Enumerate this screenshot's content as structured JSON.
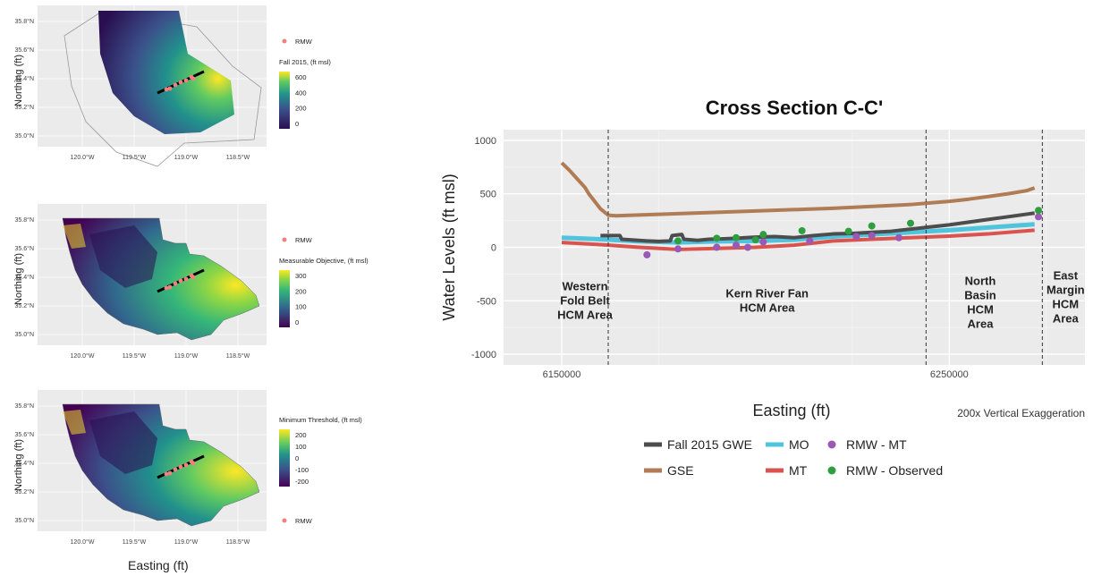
{
  "maps": [
    {
      "legend_title": "Fall 2015, (ft msl)",
      "rmw_label": "RMW",
      "colorbar_ticks": [
        "600",
        "400",
        "200",
        "0"
      ],
      "y_ticks": [
        "35.8°N",
        "35.6°N",
        "35.4°N",
        "35.2°N",
        "35.0°N"
      ],
      "x_ticks": [
        "120.0°W",
        "119.5°W",
        "119.0°W",
        "118.5°W"
      ],
      "ylabel": "Northing (ft)"
    },
    {
      "legend_title": "Measurable Objective, (ft msl)",
      "rmw_label": "RMW",
      "colorbar_ticks": [
        "300",
        "200",
        "100",
        "0"
      ],
      "y_ticks": [
        "35.8°N",
        "35.6°N",
        "35.4°N",
        "35.2°N",
        "35.0°N"
      ],
      "x_ticks": [
        "120.0°W",
        "119.5°W",
        "119.0°W",
        "118.5°W"
      ],
      "ylabel": "Northing (ft)"
    },
    {
      "legend_title": "Minimum Threshold, (ft msl)",
      "rmw_label": "RMW",
      "colorbar_ticks": [
        "200",
        "100",
        "0",
        "-100",
        "-200"
      ],
      "y_ticks": [
        "35.8°N",
        "35.6°N",
        "35.4°N",
        "35.2°N",
        "35.0°N"
      ],
      "x_ticks": [
        "120.0°W",
        "119.5°W",
        "119.0°W",
        "118.5°W"
      ],
      "ylabel": "Northing (ft)"
    }
  ],
  "maps_xlabel": "Easting (ft)",
  "chart_data": {
    "type": "line",
    "title": "Cross Section  C-C'",
    "xlabel": "Easting (ft)",
    "ylabel": "Water Levels (ft msl)",
    "xlim": [
      6135000,
      6285000
    ],
    "ylim": [
      -1100,
      1100
    ],
    "x_ticks": [
      6150000,
      6250000
    ],
    "x_tick_labels": [
      "6150000",
      "6250000"
    ],
    "y_ticks": [
      1000,
      500,
      0,
      -500,
      -1000
    ],
    "y_tick_labels": [
      "1000",
      "500",
      "0",
      "-500",
      "-1000"
    ],
    "grid": true,
    "note": "200x Vertical Exaggeration",
    "area_boundaries": [
      6162000,
      6244000,
      6274000
    ],
    "area_labels": [
      {
        "lines": [
          "Western",
          "Fold Belt",
          "HCM Area"
        ],
        "x": 6156000,
        "y": -400
      },
      {
        "lines": [
          "Kern River Fan",
          "HCM Area"
        ],
        "x": 6203000,
        "y": -470
      },
      {
        "lines": [
          "North",
          "Basin",
          "HCM",
          "Area"
        ],
        "x": 6258000,
        "y": -350
      },
      {
        "lines": [
          "East",
          "Margin",
          "HCM",
          "Area"
        ],
        "x": 6280000,
        "y": -300
      }
    ],
    "series": [
      {
        "name": "GSE",
        "color": "#b07c55",
        "width": 4,
        "x": [
          6150000,
          6152000,
          6154000,
          6156000,
          6157000,
          6158500,
          6160000,
          6162000,
          6164000,
          6180000,
          6200000,
          6220000,
          6240000,
          6245000,
          6250000,
          6255000,
          6260000,
          6265000,
          6270000,
          6272000
        ],
        "y": [
          790,
          720,
          640,
          560,
          500,
          430,
          360,
          300,
          295,
          315,
          340,
          365,
          400,
          415,
          430,
          450,
          475,
          500,
          530,
          555
        ]
      },
      {
        "name": "MO",
        "color": "#4fc4dc",
        "width": 5,
        "x": [
          6150000,
          6160000,
          6170000,
          6180000,
          6190000,
          6200000,
          6210000,
          6220000,
          6230000,
          6240000,
          6250000,
          6260000,
          6272000
        ],
        "y": [
          90,
          75,
          55,
          45,
          55,
          60,
          70,
          100,
          120,
          140,
          160,
          185,
          215
        ]
      },
      {
        "name": "MT",
        "color": "#d9534f",
        "width": 4,
        "x": [
          6150000,
          6160000,
          6170000,
          6180000,
          6190000,
          6200000,
          6210000,
          6220000,
          6230000,
          6240000,
          6250000,
          6260000,
          6272000
        ],
        "y": [
          45,
          25,
          0,
          -20,
          -10,
          0,
          20,
          60,
          75,
          90,
          105,
          125,
          160
        ]
      },
      {
        "name": "Fall 2015 GWE",
        "color": "#4d4d4d",
        "width": 4,
        "x": [
          6160000,
          6165000,
          6165500,
          6172000,
          6175000,
          6178000,
          6178500,
          6181000,
          6181500,
          6185000,
          6188000,
          6192000,
          6195000,
          6200000,
          6205000,
          6210000,
          6215000,
          6220000,
          6225000,
          6230000,
          6235000,
          6240000,
          6245000,
          6250000,
          6255000,
          6260000,
          6265000,
          6270000,
          6272000
        ],
        "y": [
          110,
          110,
          75,
          60,
          55,
          60,
          110,
          120,
          75,
          65,
          75,
          80,
          85,
          95,
          100,
          90,
          110,
          125,
          130,
          140,
          150,
          170,
          190,
          210,
          235,
          260,
          285,
          310,
          320
        ]
      }
    ],
    "points": [
      {
        "name": "RMW - MT",
        "color": "#9b59b6",
        "x": [
          6172000,
          6180000,
          6190000,
          6195000,
          6198000,
          6202000,
          6214000,
          6226000,
          6230000,
          6237000,
          6273000
        ],
        "y": [
          -70,
          -15,
          0,
          20,
          0,
          50,
          60,
          100,
          110,
          90,
          285
        ]
      },
      {
        "name": "RMW - Observed",
        "color": "#2e9e3e",
        "x": [
          6180000,
          6190000,
          6195000,
          6200000,
          6202000,
          6212000,
          6224000,
          6230000,
          6240000,
          6273000
        ],
        "y": [
          60,
          85,
          90,
          70,
          120,
          155,
          150,
          200,
          225,
          345
        ]
      }
    ],
    "legend_order": [
      "Fall 2015 GWE",
      "MO",
      "RMW - MT",
      "GSE",
      "MT",
      "RMW - Observed"
    ]
  }
}
